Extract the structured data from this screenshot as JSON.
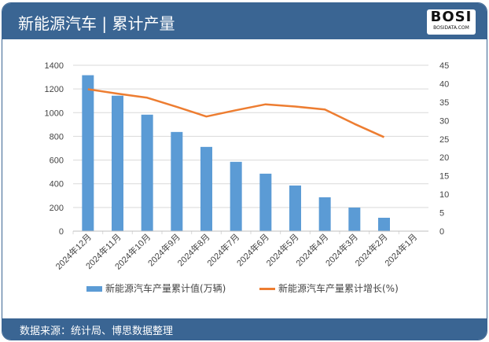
{
  "header": {
    "title": "新能源汽车 | 累计产量",
    "logo_text": "BOSI",
    "logo_sub": "BOSIDATA.COM"
  },
  "footer": {
    "source": "数据来源：统计局、博思数据整理"
  },
  "colors": {
    "bar": "#5b9bd5",
    "line": "#ed7d31",
    "header": "#3a6593"
  },
  "chart_data": {
    "type": "bar+line",
    "categories": [
      "2024年12月",
      "2024年11月",
      "2024年10月",
      "2024年9月",
      "2024年8月",
      "2024年7月",
      "2024年6月",
      "2024年5月",
      "2024年4月",
      "2024年3月",
      "2024年2月",
      "2024年1月"
    ],
    "series": [
      {
        "name": "新能源汽车产量累计值(万辆)",
        "type": "bar",
        "axis": "left",
        "values": [
          1316,
          1143,
          983,
          837,
          711,
          585,
          485,
          385,
          286,
          199,
          113,
          null
        ]
      },
      {
        "name": "新能源汽车产量累计增长(%)",
        "type": "line",
        "axis": "right",
        "values": [
          38.5,
          37.3,
          36.2,
          33.7,
          31.1,
          32.8,
          34.4,
          33.8,
          33.0,
          29.1,
          25.5,
          null
        ]
      }
    ],
    "left_axis": {
      "range": [
        0,
        1400
      ],
      "ticks": [
        0,
        200,
        400,
        600,
        800,
        1000,
        1200,
        1400
      ]
    },
    "right_axis": {
      "range": [
        0,
        45
      ],
      "ticks": [
        0,
        5,
        10,
        15,
        20,
        25,
        30,
        35,
        40,
        45
      ]
    },
    "grid": true,
    "legend": "bottom"
  }
}
